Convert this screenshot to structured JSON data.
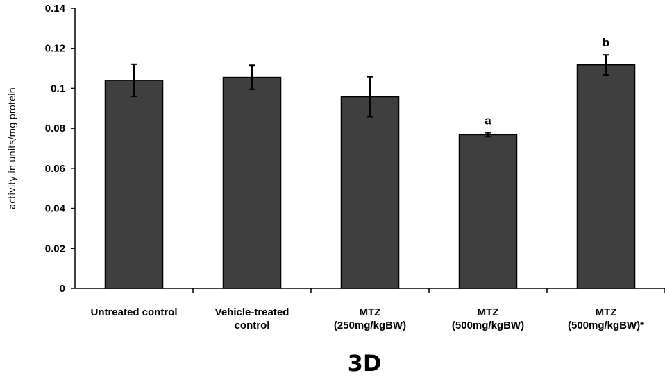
{
  "chart_data": {
    "type": "bar",
    "categories": [
      [
        "Untreated control"
      ],
      [
        "Vehicle-treated",
        "control"
      ],
      [
        "MTZ",
        "(250mg/kgBW)"
      ],
      [
        "MTZ",
        "(500mg/kgBW)"
      ],
      [
        "MTZ",
        "(500mg/kgBW)*"
      ]
    ],
    "values": [
      0.104,
      0.1055,
      0.0958,
      0.0768,
      0.1117
    ],
    "errors": [
      0.008,
      0.006,
      0.01,
      0.001,
      0.005
    ],
    "annotations": [
      "",
      "",
      "",
      "a",
      "b"
    ],
    "ylabel": "activity in units/mg protein",
    "ylim": [
      0,
      0.14
    ],
    "yticks": [
      "0",
      "0.02",
      "0.04",
      "0.06",
      "0.08",
      "0.1",
      "0.12",
      "0.14"
    ],
    "grid": false,
    "bar_color": "#3f3f3f"
  },
  "figure_label": "3D"
}
